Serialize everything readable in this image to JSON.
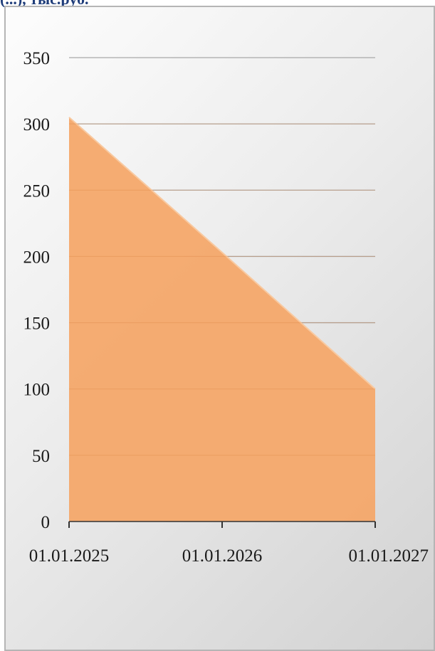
{
  "header": {
    "partial_title": "(...), тыс.руб."
  },
  "colors": {
    "area_fill": "#f4a86a",
    "area_stroke": "#f8c9a0",
    "gridline": "#a8a8a8",
    "axis": "#333333",
    "text": "#1a1a1a",
    "title": "#1f3d7a"
  },
  "chart_data": {
    "type": "area",
    "title": "",
    "xlabel": "",
    "ylabel": "",
    "x": [
      "01.01.2025",
      "01.01.2026",
      "01.01.2027"
    ],
    "series": [
      {
        "values": [
          305,
          203,
          100
        ]
      }
    ],
    "ylim": [
      0,
      350
    ],
    "yticks": [
      0,
      50,
      100,
      150,
      200,
      250,
      300,
      350
    ],
    "ytick_labels": [
      "0",
      "50",
      "100",
      "150",
      "200",
      "250",
      "300",
      "350"
    ],
    "xtick_labels": [
      "01.01.2025",
      "01.01.2026",
      "01.01.2027"
    ],
    "grid": true,
    "legend": "none"
  }
}
